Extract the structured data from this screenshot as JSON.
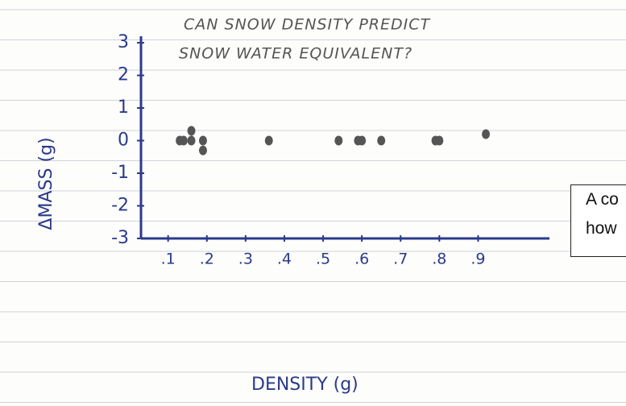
{
  "chart_data": {
    "type": "scatter",
    "title_lines": [
      "CAN SNOW DENSITY PREDICT",
      "SNOW WATER EQUIVALENT?"
    ],
    "x_label": "DENSITY (g)",
    "y_label": "ΔMASS (g)",
    "x": [
      0.13,
      0.14,
      0.16,
      0.16,
      0.19,
      0.19,
      0.36,
      0.54,
      0.59,
      0.6,
      0.65,
      0.79,
      0.8,
      0.92
    ],
    "values": [
      0,
      0,
      0.3,
      0,
      0,
      -0.3,
      0,
      0,
      0,
      0,
      0,
      0,
      0,
      0.2
    ],
    "color": "#555555",
    "xlim": [
      0.03,
      1.08
    ],
    "xticks": [
      {
        "value": 0.1,
        "label": ".1"
      },
      {
        "value": 0.2,
        "label": ".2"
      },
      {
        "value": 0.3,
        "label": ".3"
      },
      {
        "value": 0.4,
        "label": ".4"
      },
      {
        "value": 0.5,
        "label": ".5"
      },
      {
        "value": 0.6,
        "label": ".6"
      },
      {
        "value": 0.7,
        "label": ".7"
      },
      {
        "value": 0.8,
        "label": ".8"
      },
      {
        "value": 0.9,
        "label": ".9"
      }
    ],
    "ylim": [
      -3,
      3.2
    ],
    "yticks": [
      3,
      2,
      1,
      0,
      -1,
      -2,
      -3
    ],
    "grid": false
  },
  "annotation_box": {
    "lines": [
      "A co",
      "how"
    ]
  }
}
